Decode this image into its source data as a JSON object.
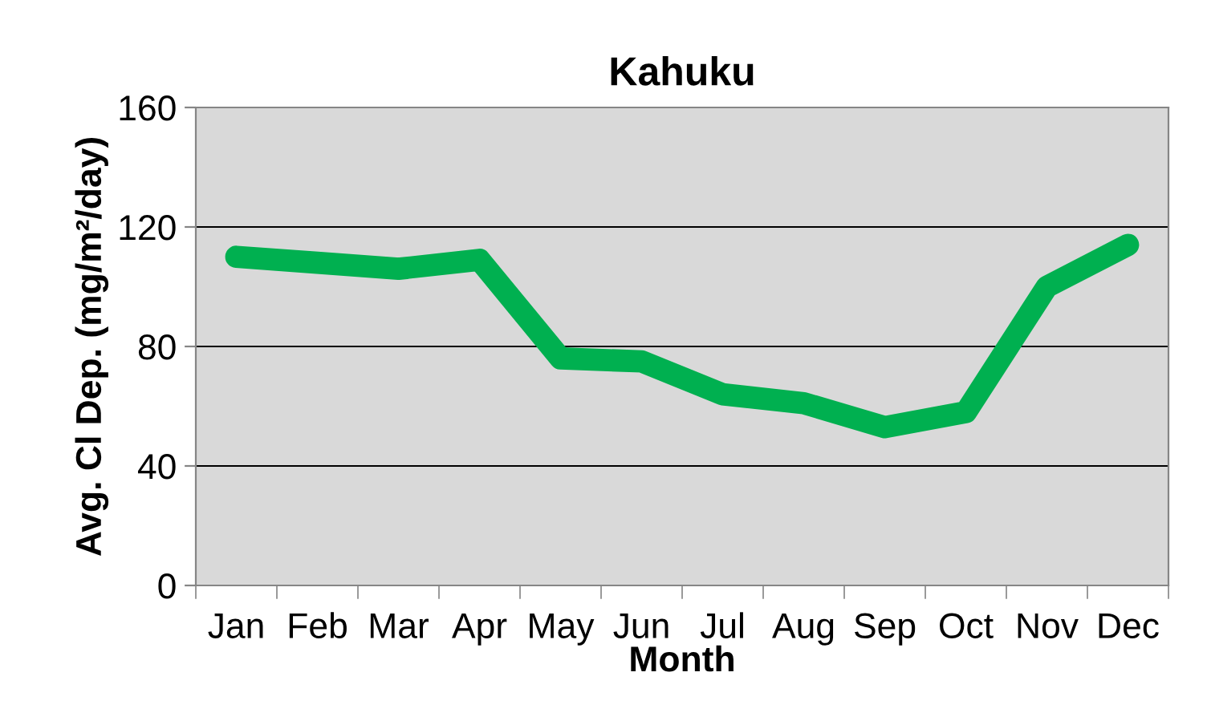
{
  "chart_data": {
    "type": "line",
    "title": "Kahuku",
    "xlabel": "Month",
    "ylabel": "Avg. Cl Dep. (mg/m²/day)",
    "categories": [
      "Jan",
      "Feb",
      "Mar",
      "Apr",
      "May",
      "Jun",
      "Jul",
      "Aug",
      "Sep",
      "Oct",
      "Nov",
      "Dec"
    ],
    "series": [
      {
        "color": "#00b050",
        "values": [
          110,
          108,
          106,
          109,
          76,
          75,
          64,
          61,
          53,
          58,
          100,
          114
        ]
      }
    ],
    "ylim": [
      0,
      160
    ],
    "yticks": [
      0,
      40,
      80,
      120,
      160
    ],
    "grid": "y",
    "line_style": "solid",
    "legend": false
  }
}
